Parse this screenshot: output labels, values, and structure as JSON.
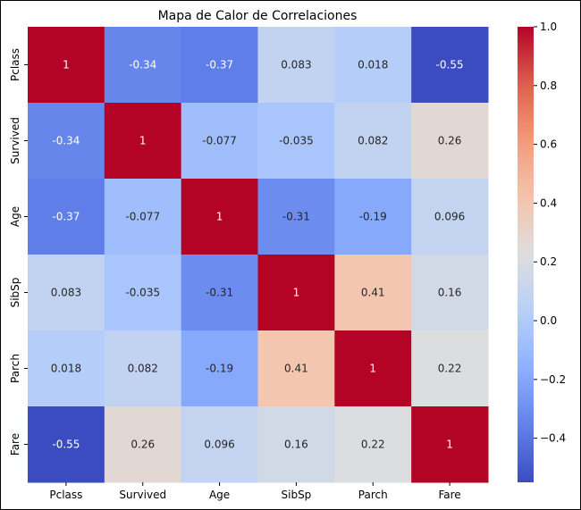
{
  "chart_data": {
    "type": "heatmap",
    "title": "Mapa de Calor de Correlaciones",
    "xlabel": "",
    "ylabel": "",
    "x_categories": [
      "Pclass",
      "Survived",
      "Age",
      "SibSp",
      "Parch",
      "Fare"
    ],
    "y_categories": [
      "Pclass",
      "Survived",
      "Age",
      "SibSp",
      "Parch",
      "Fare"
    ],
    "values": [
      [
        1,
        -0.34,
        -0.37,
        0.083,
        0.018,
        -0.55
      ],
      [
        -0.34,
        1,
        -0.077,
        -0.035,
        0.082,
        0.26
      ],
      [
        -0.37,
        -0.077,
        1,
        -0.31,
        -0.19,
        0.096
      ],
      [
        0.083,
        -0.035,
        -0.31,
        1,
        0.41,
        0.16
      ],
      [
        0.018,
        0.082,
        -0.19,
        0.41,
        1,
        0.22
      ],
      [
        -0.55,
        0.26,
        0.096,
        0.16,
        0.22,
        1
      ]
    ],
    "value_labels": [
      [
        "1",
        "-0.34",
        "-0.37",
        "0.083",
        "0.018",
        "-0.55"
      ],
      [
        "-0.34",
        "1",
        "-0.077",
        "-0.035",
        "0.082",
        "0.26"
      ],
      [
        "-0.37",
        "-0.077",
        "1",
        "-0.31",
        "-0.19",
        "0.096"
      ],
      [
        "0.083",
        "-0.035",
        "-0.31",
        "1",
        "0.41",
        "0.16"
      ],
      [
        "0.018",
        "0.082",
        "-0.19",
        "0.41",
        "1",
        "0.22"
      ],
      [
        "-0.55",
        "0.26",
        "0.096",
        "0.16",
        "0.22",
        "1"
      ]
    ],
    "colormap": "coolwarm",
    "colorbar": {
      "vmin": -0.55,
      "vmax": 1.0,
      "ticks": [
        1.0,
        0.8,
        0.6,
        0.4,
        0.2,
        0.0,
        -0.2,
        -0.4
      ],
      "tick_labels": [
        "1.0",
        "0.8",
        "0.6",
        "0.4",
        "0.2",
        "0.0",
        "−0.2",
        "−0.4"
      ]
    }
  }
}
